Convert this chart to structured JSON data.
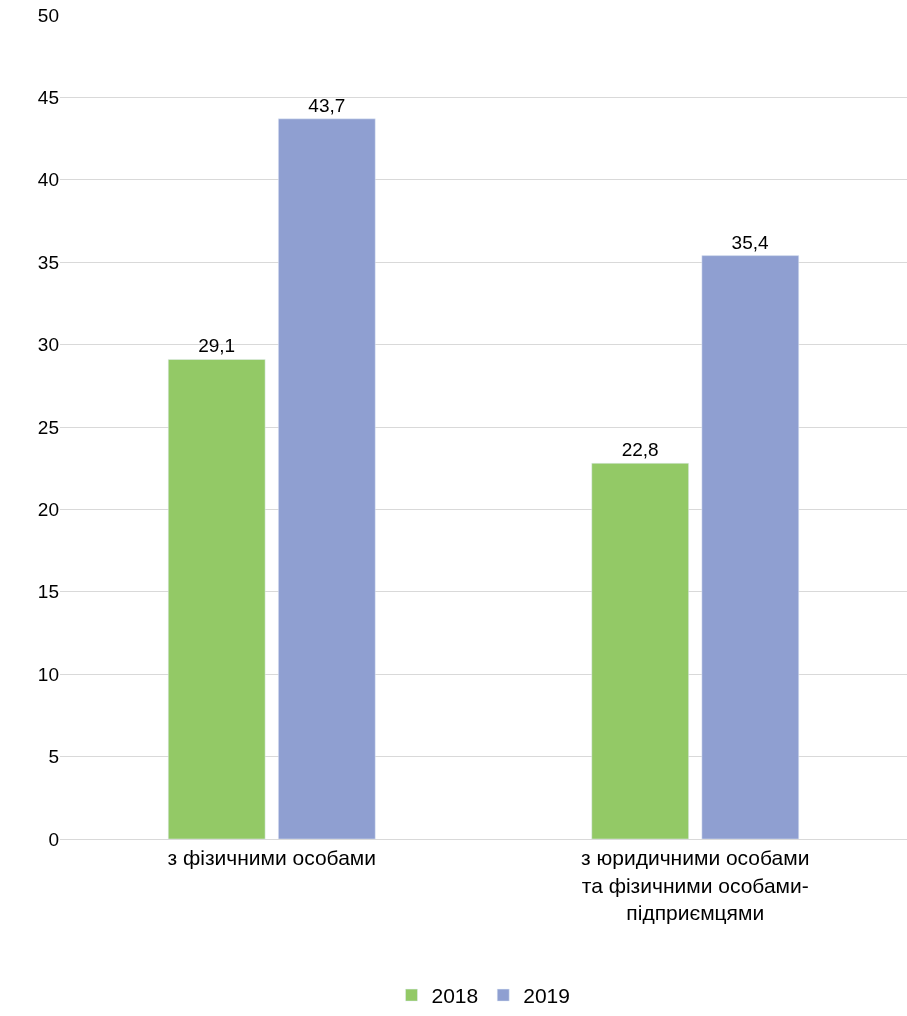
{
  "chart_data": {
    "type": "bar",
    "categories": [
      "з фізичними особами",
      "з юридичними особами\nта фізичними особами-\nпідприємцями"
    ],
    "series": [
      {
        "name": "2018",
        "color": "#93c966",
        "values": [
          29.1,
          22.8
        ],
        "value_labels": [
          "29,1",
          "22,8"
        ]
      },
      {
        "name": "2019",
        "color": "#8f9fd1",
        "values": [
          43.7,
          35.4
        ],
        "value_labels": [
          "43,7",
          "35,4"
        ]
      }
    ],
    "ylim": [
      0,
      50
    ],
    "yticks": [
      0,
      5,
      10,
      15,
      20,
      25,
      30,
      35,
      40,
      45,
      50
    ],
    "grid": "y",
    "legend": "bottom"
  }
}
